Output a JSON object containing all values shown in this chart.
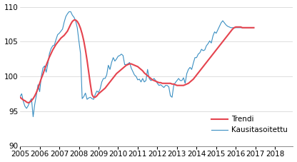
{
  "ylim": [
    90,
    110
  ],
  "yticks": [
    90,
    95,
    100,
    105,
    110
  ],
  "xlim_start": 2005.0,
  "xlim_end": 2018.9167,
  "xtick_labels": [
    "2005",
    "2006",
    "2007",
    "2008",
    "2009",
    "2010",
    "2011",
    "2012",
    "2013",
    "2014",
    "2015",
    "2016",
    "2017",
    "2018"
  ],
  "trend_color": "#e5434e",
  "seasonal_color": "#3a8fc2",
  "legend_trendi": "Trendi",
  "legend_kausitasoitettu": "Kausitasoitettu",
  "background_color": "#ffffff",
  "grid_color": "#d0d0d0",
  "trend_linewidth": 1.5,
  "seasonal_linewidth": 0.8,
  "font_size": 7.5,
  "trend_data": [
    97.0,
    96.8,
    96.6,
    96.5,
    96.3,
    96.2,
    96.3,
    96.5,
    96.8,
    97.2,
    97.7,
    98.3,
    99.0,
    99.7,
    100.3,
    101.0,
    101.6,
    102.2,
    102.8,
    103.3,
    103.8,
    104.2,
    104.6,
    104.9,
    105.2,
    105.5,
    105.7,
    105.9,
    106.2,
    106.5,
    107.0,
    107.5,
    107.9,
    108.1,
    108.1,
    107.9,
    107.5,
    106.9,
    106.1,
    105.1,
    103.8,
    102.3,
    100.6,
    98.9,
    97.4,
    97.0,
    97.0,
    97.2,
    97.5,
    97.7,
    97.9,
    98.1,
    98.3,
    98.6,
    98.9,
    99.2,
    99.5,
    99.8,
    100.1,
    100.4,
    100.6,
    100.8,
    101.0,
    101.2,
    101.4,
    101.6,
    101.7,
    101.8,
    101.8,
    101.7,
    101.6,
    101.5,
    101.4,
    101.2,
    101.0,
    100.8,
    100.5,
    100.3,
    100.1,
    99.9,
    99.7,
    99.5,
    99.4,
    99.3,
    99.2,
    99.1,
    99.1,
    99.0,
    99.0,
    99.0,
    99.0,
    99.0,
    99.0,
    98.9,
    98.9,
    98.8,
    98.7,
    98.7,
    98.7,
    98.7,
    98.7,
    98.8,
    98.9,
    99.0,
    99.2,
    99.4,
    99.6,
    99.9,
    100.2,
    100.5,
    100.8,
    101.1,
    101.4,
    101.7,
    102.0,
    102.3,
    102.6,
    102.9,
    103.2,
    103.5,
    103.8,
    104.1,
    104.4,
    104.7,
    105.0,
    105.3,
    105.6,
    105.9,
    106.2,
    106.5,
    106.8,
    107.0,
    107.1,
    107.1,
    107.1,
    107.1,
    107.0,
    107.0,
    107.0,
    107.0,
    107.0,
    107.0,
    107.0,
    107.0
  ],
  "seasonal_data": [
    97.1,
    97.5,
    96.4,
    95.7,
    95.4,
    95.8,
    96.4,
    96.8,
    94.2,
    96.0,
    97.3,
    98.8,
    97.8,
    100.0,
    101.2,
    101.5,
    100.6,
    101.8,
    103.3,
    104.0,
    104.4,
    104.5,
    105.3,
    106.0,
    106.2,
    106.5,
    106.8,
    107.8,
    108.6,
    109.0,
    109.3,
    109.3,
    108.8,
    108.5,
    108.0,
    107.0,
    105.1,
    103.3,
    96.8,
    97.1,
    97.6,
    96.7,
    96.9,
    97.0,
    96.8,
    96.7,
    97.4,
    97.9,
    97.7,
    98.2,
    99.2,
    99.7,
    99.7,
    100.2,
    101.6,
    101.0,
    102.0,
    102.7,
    102.2,
    102.5,
    102.9,
    103.0,
    103.2,
    103.0,
    101.7,
    101.7,
    101.8,
    102.0,
    101.2,
    100.7,
    100.2,
    100.0,
    99.5,
    99.6,
    99.2,
    99.7,
    99.2,
    99.4,
    101.0,
    99.7,
    99.4,
    99.5,
    99.7,
    99.4,
    99.0,
    98.7,
    98.8,
    98.6,
    98.4,
    98.7,
    98.7,
    98.5,
    97.2,
    97.0,
    98.7,
    99.1,
    99.4,
    99.7,
    99.4,
    99.4,
    99.8,
    99.0,
    100.4,
    101.0,
    101.3,
    101.0,
    101.9,
    102.7,
    102.7,
    103.2,
    103.4,
    103.9,
    103.7,
    103.8,
    104.4,
    104.7,
    105.1,
    104.8,
    105.8,
    106.4,
    106.2,
    106.7,
    107.2,
    107.7,
    108.0,
    107.7,
    107.4,
    107.2,
    107.1,
    107.0,
    107.0,
    107.0,
    107.0,
    107.0,
    107.0,
    107.0,
    107.0,
    107.0,
    107.0,
    107.0,
    107.0,
    107.0,
    107.0,
    107.0
  ]
}
